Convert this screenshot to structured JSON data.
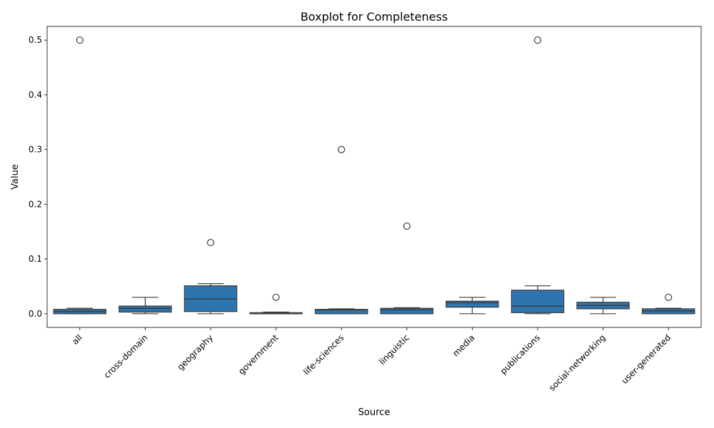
{
  "chart_data": {
    "type": "boxplot",
    "title": "Boxplot for Completeness",
    "xlabel": "Source",
    "ylabel": "Value",
    "ylim": [
      -0.025,
      0.525
    ],
    "yticks": [
      "0.0",
      "0.1",
      "0.2",
      "0.3",
      "0.4",
      "0.5"
    ],
    "box_color": "#2e75b0",
    "edge_color": "#3a3a3a",
    "grid": false,
    "legend": "none",
    "categories": [
      "all",
      "cross-domain",
      "geography",
      "government",
      "life-sciences",
      "linguistic",
      "media",
      "publications",
      "social-networking",
      "user-generated"
    ],
    "boxes": [
      {
        "category": "all",
        "whisker_low": 0.0,
        "q1": 0.0,
        "median": 0.004,
        "q3": 0.008,
        "whisker_high": 0.01,
        "outliers": [
          0.5
        ]
      },
      {
        "category": "cross-domain",
        "whisker_low": 0.0,
        "q1": 0.003,
        "median": 0.01,
        "q3": 0.014,
        "whisker_high": 0.03,
        "outliers": []
      },
      {
        "category": "geography",
        "whisker_low": 0.0,
        "q1": 0.004,
        "median": 0.027,
        "q3": 0.051,
        "whisker_high": 0.055,
        "outliers": [
          0.13
        ]
      },
      {
        "category": "government",
        "whisker_low": 0.0,
        "q1": 0.0,
        "median": 0.0,
        "q3": 0.002,
        "whisker_high": 0.003,
        "outliers": [
          0.03
        ]
      },
      {
        "category": "life-sciences",
        "whisker_low": 0.0,
        "q1": 0.0,
        "median": 0.007,
        "q3": 0.008,
        "whisker_high": 0.009,
        "outliers": [
          0.3
        ]
      },
      {
        "category": "linguistic",
        "whisker_low": 0.0,
        "q1": 0.0,
        "median": 0.007,
        "q3": 0.01,
        "whisker_high": 0.011,
        "outliers": [
          0.16
        ]
      },
      {
        "category": "media",
        "whisker_low": 0.0,
        "q1": 0.012,
        "median": 0.02,
        "q3": 0.023,
        "whisker_high": 0.03,
        "outliers": []
      },
      {
        "category": "publications",
        "whisker_low": 0.0,
        "q1": 0.002,
        "median": 0.014,
        "q3": 0.043,
        "whisker_high": 0.051,
        "outliers": [
          0.5
        ]
      },
      {
        "category": "social-networking",
        "whisker_low": 0.0,
        "q1": 0.009,
        "median": 0.015,
        "q3": 0.021,
        "whisker_high": 0.03,
        "outliers": []
      },
      {
        "category": "user-generated",
        "whisker_low": 0.0,
        "q1": 0.0,
        "median": 0.005,
        "q3": 0.009,
        "whisker_high": 0.01,
        "outliers": [
          0.03
        ]
      }
    ]
  }
}
